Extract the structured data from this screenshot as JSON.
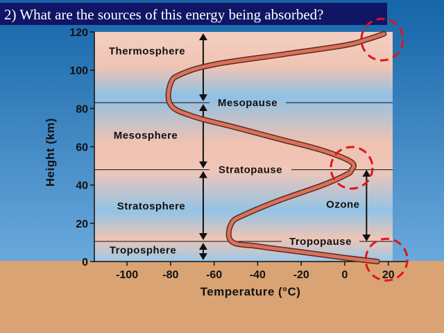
{
  "question": "2) What are the sources of this energy being absorbed?",
  "colors": {
    "sky_top": "#1565a8",
    "sky_bottom": "#5ea0d6",
    "ground": "#d9a373",
    "profile": "#d9725a",
    "warm_band": "#f2c8b8",
    "cool_band": "#8ec0e4",
    "highlight_circle": "#e0141b",
    "title_bar": "#101566"
  },
  "chart_data": {
    "type": "line",
    "xlabel": "Temperature (°C)",
    "ylabel": "Height (km)",
    "xlim": [
      -115,
      22
    ],
    "ylim": [
      0,
      120
    ],
    "xticks": [
      -100,
      -80,
      -60,
      -40,
      -20,
      0,
      20
    ],
    "yticks": [
      0,
      20,
      40,
      60,
      80,
      100,
      120
    ],
    "series": [
      {
        "x": [
          15,
          0,
          -20,
          -40,
          -52,
          -52,
          -45,
          -30,
          -10,
          0,
          3,
          3,
          -10,
          -30,
          -50,
          -70,
          -80,
          -80,
          -75,
          -60,
          -30,
          0,
          10,
          18
        ],
        "y": [
          0,
          2,
          5,
          8,
          10.5,
          20,
          25,
          32,
          40,
          45,
          47.5,
          52,
          58,
          64,
          70,
          76,
          82,
          93,
          98,
          103,
          108,
          113,
          116,
          119
        ]
      }
    ],
    "layers": [
      {
        "label": "Thermosphere",
        "y": 110
      },
      {
        "label": "Mesosphere",
        "y": 66
      },
      {
        "label": "Stratosphere",
        "y": 29
      },
      {
        "label": "Troposphere",
        "y": 6
      }
    ],
    "boundaries": [
      {
        "label": "Mesopause",
        "y": 83
      },
      {
        "label": "Stratopause",
        "y": 48
      },
      {
        "label": "Tropopause",
        "y": 10.5
      }
    ],
    "ozone": {
      "label": "Ozone",
      "x": 10,
      "y_range": [
        10.5,
        48
      ]
    },
    "arrows_x": -65,
    "highlight_circles": [
      {
        "x": 14,
        "y": 116
      },
      {
        "x": 0,
        "y": 49
      },
      {
        "x": 16,
        "y": 1
      }
    ]
  }
}
